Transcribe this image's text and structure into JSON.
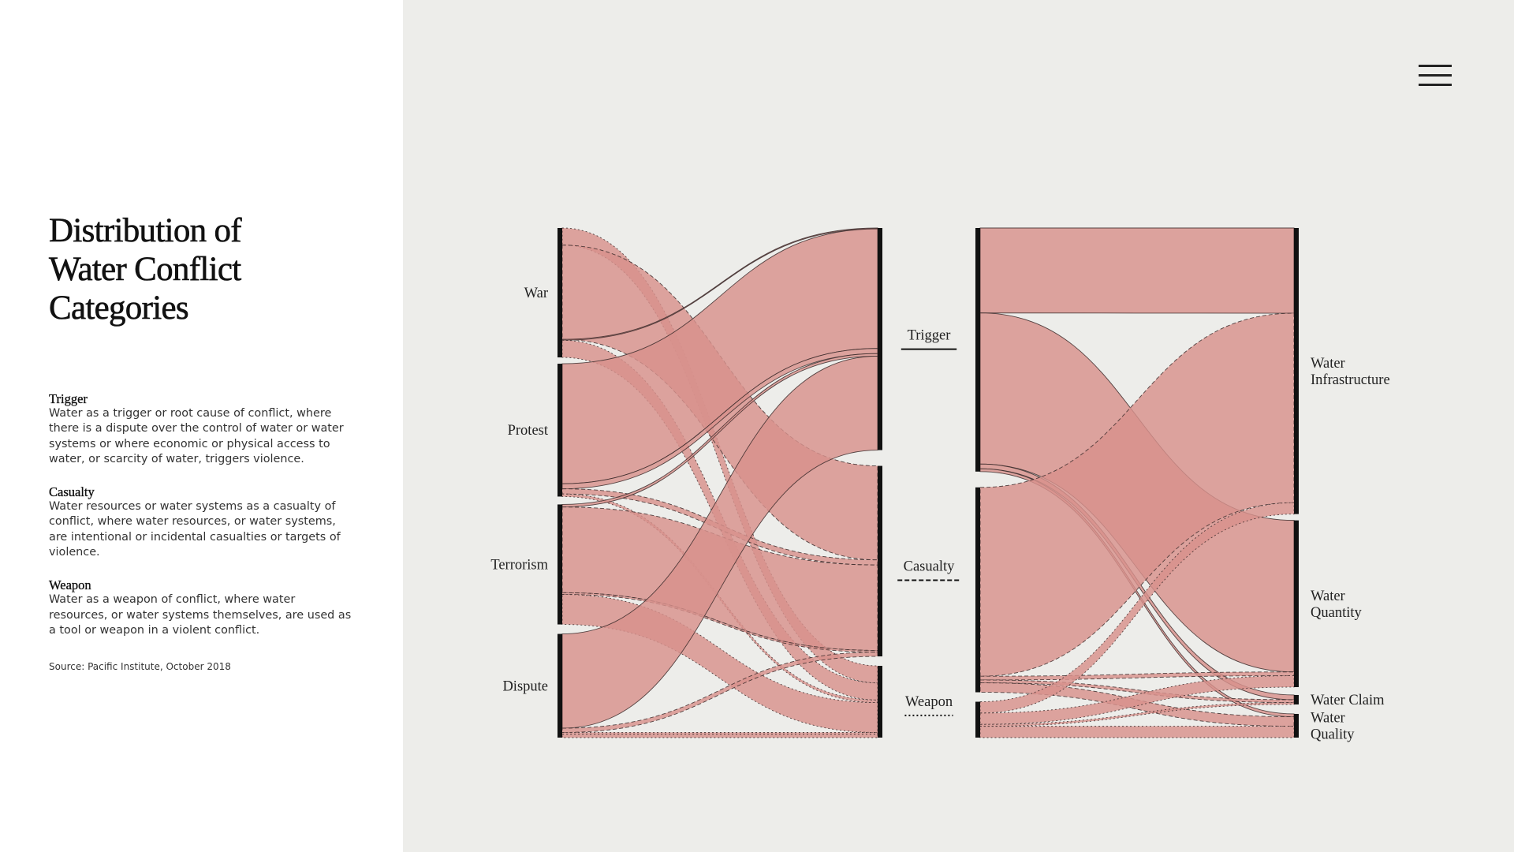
{
  "title": "Distribution of Water Conflict Categories",
  "definitions": [
    {
      "term": "Trigger",
      "text": "Water as a trigger or root cause of conflict, where there is a dispute over the control of water or water systems or where economic or physical access to water, or scarcity of water, triggers violence."
    },
    {
      "term": "Casualty",
      "text": "Water resources or water systems as a casualty of conflict, where water resources, or water systems, are intentional or incidental casualties or targets of violence."
    },
    {
      "term": "Weapon",
      "text": "Water as a weapon of conflict, where water resources, or water systems themselves, are used as a tool or weapon in a violent conflict."
    }
  ],
  "source": "Source: Pacific Institute, October 2018",
  "menu": {
    "icon": "hamburger-menu-icon"
  },
  "colors": {
    "flow": "#d8918c",
    "panel": "#ededea",
    "node": "#111111"
  },
  "chart_data": {
    "type": "sankey",
    "left_nodes": [
      "War",
      "Protest",
      "Terrorism",
      "Dispute"
    ],
    "middle_nodes": [
      "Trigger",
      "Casualty",
      "Weapon"
    ],
    "middle_line_styles": [
      "solid",
      "dashed",
      "dotted"
    ],
    "right_nodes": [
      "Water Infrastructure",
      "Water Quantity",
      "Water Claim",
      "Water Quality"
    ],
    "links_left": [
      {
        "source": "War",
        "target": "Weapon",
        "value": 20
      },
      {
        "source": "War",
        "target": "Casualty",
        "value": 110
      },
      {
        "source": "War",
        "target": "Trigger",
        "value": 1
      },
      {
        "source": "War",
        "target": "Weapon",
        "value": 20
      },
      {
        "source": "Protest",
        "target": "Trigger",
        "value": 140
      },
      {
        "source": "Protest",
        "target": "Trigger",
        "value": 6
      },
      {
        "source": "Protest",
        "target": "Casualty",
        "value": 6
      },
      {
        "source": "Protest",
        "target": "Weapon",
        "value": 3
      },
      {
        "source": "Terrorism",
        "target": "Trigger",
        "value": 3
      },
      {
        "source": "Terrorism",
        "target": "Casualty",
        "value": 100
      },
      {
        "source": "Terrorism",
        "target": "Casualty",
        "value": 2
      },
      {
        "source": "Terrorism",
        "target": "Weapon",
        "value": 35
      },
      {
        "source": "Dispute",
        "target": "Trigger",
        "value": 110
      },
      {
        "source": "Dispute",
        "target": "Casualty",
        "value": 5
      },
      {
        "source": "Dispute",
        "target": "Weapon",
        "value": 2
      },
      {
        "source": "Dispute",
        "target": "Weapon",
        "value": 4
      }
    ],
    "links_right": [
      {
        "source": "Trigger",
        "target": "Water Infrastructure",
        "value": 90
      },
      {
        "source": "Trigger",
        "target": "Water Quantity",
        "value": 160
      },
      {
        "source": "Trigger",
        "target": "Water Claim",
        "value": 5
      },
      {
        "source": "Trigger",
        "target": "Water Quality",
        "value": 3
      },
      {
        "source": "Casualty",
        "target": "Water Infrastructure",
        "value": 200
      },
      {
        "source": "Casualty",
        "target": "Water Quantity",
        "value": 4
      },
      {
        "source": "Casualty",
        "target": "Water Claim",
        "value": 3
      },
      {
        "source": "Casualty",
        "target": "Water Quality",
        "value": 10
      },
      {
        "source": "Weapon",
        "target": "Water Infrastructure",
        "value": 12
      },
      {
        "source": "Weapon",
        "target": "Water Quantity",
        "value": 12
      },
      {
        "source": "Weapon",
        "target": "Water Claim",
        "value": 2
      },
      {
        "source": "Weapon",
        "target": "Water Quality",
        "value": 12
      }
    ]
  }
}
